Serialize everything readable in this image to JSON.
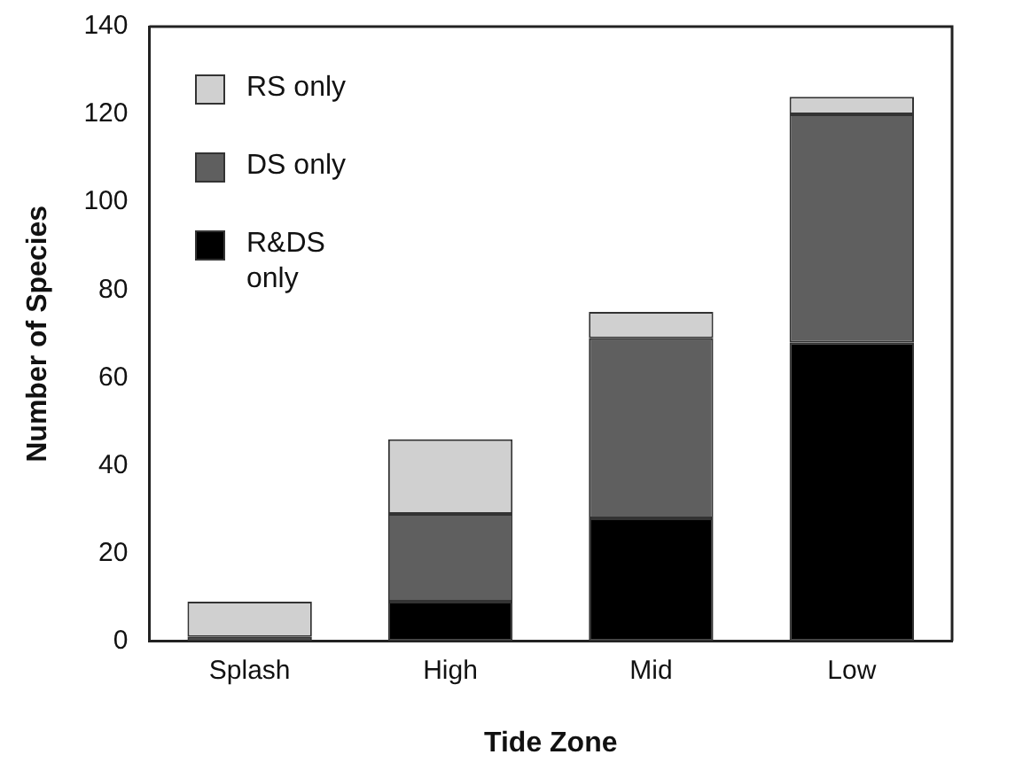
{
  "chart_data": {
    "type": "bar",
    "stacked": true,
    "xlabel": "Tide Zone",
    "ylabel": "Number of Species",
    "categories": [
      "Splash",
      "High",
      "Mid",
      "Low"
    ],
    "series": [
      {
        "name": "R&DS only",
        "color": "#000000",
        "values": [
          1,
          9,
          28,
          68
        ]
      },
      {
        "name": "DS only",
        "color": "#5f5f5f",
        "values": [
          0,
          20,
          41,
          52
        ]
      },
      {
        "name": "RS only",
        "color": "#d0d0d0",
        "values": [
          8,
          17,
          6,
          4
        ]
      }
    ],
    "ylim": [
      0,
      140
    ],
    "yticks": [
      0,
      20,
      40,
      60,
      80,
      100,
      120,
      140
    ],
    "grid": false,
    "legend": "top left"
  }
}
